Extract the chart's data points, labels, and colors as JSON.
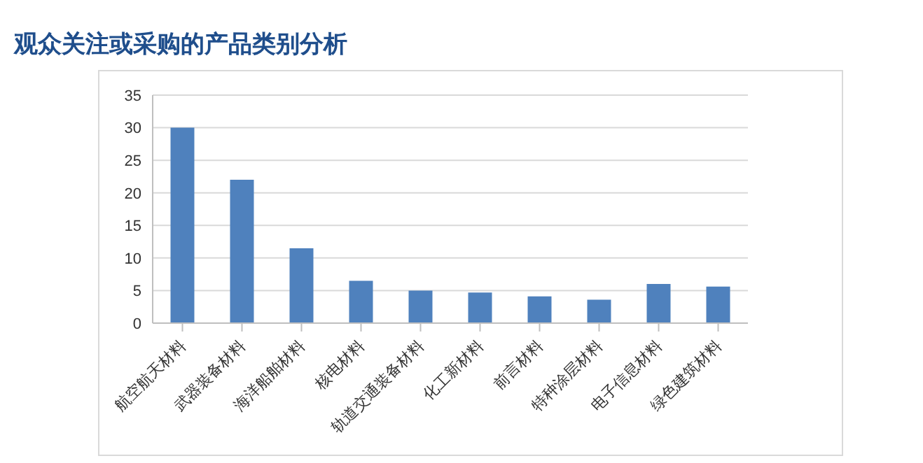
{
  "chart_data": {
    "type": "bar",
    "title": "观众关注或采购的产品类别分析",
    "categories": [
      "航空航天材料",
      "武器装备材料",
      "海洋船舶材料",
      "核电材料",
      "轨道交通装备材料",
      "化工新材料",
      "前言材料",
      "特种涂层材料",
      "电子信息材料",
      "绿色建筑材料"
    ],
    "values": [
      30,
      22,
      11.5,
      6.5,
      5,
      4.7,
      4.1,
      3.6,
      6,
      5.6
    ],
    "color": "#4f81bd",
    "ylim": [
      0,
      35
    ],
    "yticks": [
      0,
      5,
      10,
      15,
      20,
      25,
      30,
      35
    ],
    "grid": "y"
  }
}
